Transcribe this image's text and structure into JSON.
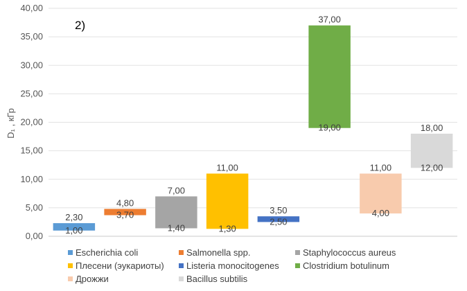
{
  "panel_label": "2)",
  "chart_data": {
    "type": "floating-bar",
    "title": "",
    "xlabel": "",
    "ylabel": "D₁ , кГр",
    "ylim": [
      0,
      40
    ],
    "ytick_step": 5,
    "yticks": [
      "0,00",
      "5,00",
      "10,00",
      "15,00",
      "20,00",
      "25,00",
      "30,00",
      "35,00",
      "40,00"
    ],
    "grid": true,
    "legend_position": "bottom",
    "series": [
      {
        "name": "Escherichia coli",
        "low": 1.0,
        "high": 2.3,
        "low_label": "1,00",
        "high_label": "2,30",
        "color": "#5b9bd5"
      },
      {
        "name": "Salmonella spp.",
        "low": 3.7,
        "high": 4.8,
        "low_label": "3,70",
        "high_label": "4,80",
        "color": "#ed7d31"
      },
      {
        "name": "Staphylococcus aureus",
        "low": 1.4,
        "high": 7.0,
        "low_label": "1,40",
        "high_label": "7,00",
        "color": "#a5a5a5"
      },
      {
        "name": "Плесени (эукариоты)",
        "low": 1.3,
        "high": 11.0,
        "low_label": "1,30",
        "high_label": "11,00",
        "color": "#ffc000"
      },
      {
        "name": "Listeria monocitogenes",
        "low": 2.5,
        "high": 3.5,
        "low_label": "2,50",
        "high_label": "3,50",
        "color": "#4472c4"
      },
      {
        "name": "Clostridium botulinum",
        "low": 19.0,
        "high": 37.0,
        "low_label": "19,00",
        "high_label": "37,00",
        "color": "#70ad47"
      },
      {
        "name": "Дрожжи",
        "low": 4.0,
        "high": 11.0,
        "low_label": "4,00",
        "high_label": "11,00",
        "color": "#f8cbad"
      },
      {
        "name": "Bacillus subtilis",
        "low": 12.0,
        "high": 18.0,
        "low_label": "12,00",
        "high_label": "18,00",
        "color": "#d9d9d9"
      }
    ]
  }
}
